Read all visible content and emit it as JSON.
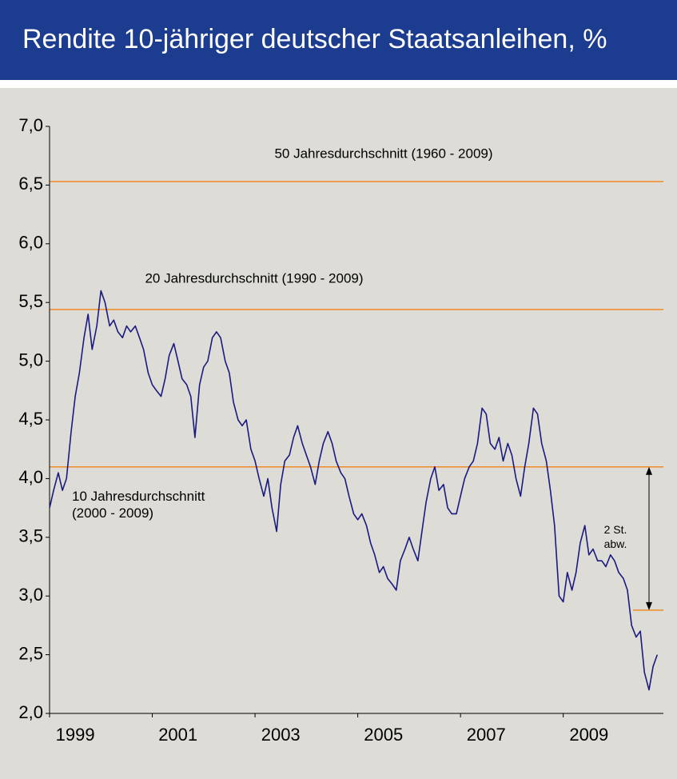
{
  "chart_data": {
    "type": "line",
    "title": "Rendite 10-jähriger deutscher Staatsanleihen, %",
    "color": "#1a1a80",
    "x": [
      1999,
      1999.08,
      1999.17,
      1999.25,
      1999.33,
      1999.42,
      1999.5,
      1999.58,
      1999.67,
      1999.75,
      1999.83,
      1999.92,
      2000,
      2000.08,
      2000.17,
      2000.25,
      2000.33,
      2000.42,
      2000.5,
      2000.58,
      2000.67,
      2000.75,
      2000.83,
      2000.92,
      2001,
      2001.08,
      2001.17,
      2001.25,
      2001.33,
      2001.42,
      2001.5,
      2001.58,
      2001.67,
      2001.75,
      2001.83,
      2001.92,
      2002,
      2002.08,
      2002.17,
      2002.25,
      2002.33,
      2002.42,
      2002.5,
      2002.58,
      2002.67,
      2002.75,
      2002.83,
      2002.92,
      2003,
      2003.08,
      2003.17,
      2003.25,
      2003.33,
      2003.42,
      2003.5,
      2003.58,
      2003.67,
      2003.75,
      2003.83,
      2003.92,
      2004,
      2004.08,
      2004.17,
      2004.25,
      2004.33,
      2004.42,
      2004.5,
      2004.58,
      2004.67,
      2004.75,
      2004.83,
      2004.92,
      2005,
      2005.08,
      2005.17,
      2005.25,
      2005.33,
      2005.42,
      2005.5,
      2005.58,
      2005.67,
      2005.75,
      2005.83,
      2005.92,
      2006,
      2006.08,
      2006.17,
      2006.25,
      2006.33,
      2006.42,
      2006.5,
      2006.58,
      2006.67,
      2006.75,
      2006.83,
      2006.92,
      2007,
      2007.08,
      2007.17,
      2007.25,
      2007.33,
      2007.42,
      2007.5,
      2007.58,
      2007.67,
      2007.75,
      2007.83,
      2007.92,
      2008,
      2008.08,
      2008.17,
      2008.25,
      2008.33,
      2008.42,
      2008.5,
      2008.58,
      2008.67,
      2008.75,
      2008.83,
      2008.92,
      2009,
      2009.08,
      2009.17,
      2009.25,
      2009.33,
      2009.42,
      2009.5,
      2009.58,
      2009.67,
      2009.75,
      2009.83,
      2009.92,
      2010,
      2010.08,
      2010.17,
      2010.25,
      2010.33,
      2010.42,
      2010.5,
      2010.58,
      2010.67,
      2010.75,
      2010.83
    ],
    "values": [
      3.75,
      3.9,
      4.05,
      3.9,
      4.0,
      4.4,
      4.7,
      4.9,
      5.2,
      5.4,
      5.1,
      5.3,
      5.6,
      5.5,
      5.3,
      5.35,
      5.25,
      5.2,
      5.3,
      5.25,
      5.3,
      5.2,
      5.1,
      4.9,
      4.8,
      4.75,
      4.7,
      4.85,
      5.05,
      5.15,
      5.0,
      4.85,
      4.8,
      4.7,
      4.35,
      4.8,
      4.95,
      5.0,
      5.2,
      5.25,
      5.2,
      5.0,
      4.9,
      4.65,
      4.5,
      4.45,
      4.5,
      4.25,
      4.15,
      4.0,
      3.85,
      4.0,
      3.75,
      3.55,
      3.95,
      4.15,
      4.2,
      4.35,
      4.45,
      4.3,
      4.2,
      4.1,
      3.95,
      4.15,
      4.3,
      4.4,
      4.3,
      4.15,
      4.05,
      4.0,
      3.85,
      3.7,
      3.65,
      3.7,
      3.6,
      3.45,
      3.35,
      3.2,
      3.25,
      3.15,
      3.1,
      3.05,
      3.3,
      3.4,
      3.5,
      3.4,
      3.3,
      3.55,
      3.8,
      4.0,
      4.1,
      3.9,
      3.95,
      3.75,
      3.7,
      3.7,
      3.85,
      4.0,
      4.1,
      4.15,
      4.3,
      4.6,
      4.55,
      4.3,
      4.25,
      4.35,
      4.15,
      4.3,
      4.2,
      4.0,
      3.85,
      4.1,
      4.3,
      4.6,
      4.55,
      4.3,
      4.15,
      3.9,
      3.6,
      3.0,
      2.95,
      3.2,
      3.05,
      3.2,
      3.45,
      3.6,
      3.35,
      3.4,
      3.3,
      3.3,
      3.25,
      3.35,
      3.3,
      3.2,
      3.15,
      3.05,
      2.75,
      2.65,
      2.7,
      2.35,
      2.2,
      2.4,
      2.5
    ],
    "xlim": [
      1999,
      2010.95
    ],
    "xticks": [
      1999,
      2001,
      2003,
      2005,
      2007,
      2009
    ],
    "ylim": [
      2,
      7
    ],
    "yticks": [
      {
        "value": 2,
        "label": "2,0"
      },
      {
        "value": 2.5,
        "label": "2,5"
      },
      {
        "value": 3,
        "label": "3,0"
      },
      {
        "value": 3.5,
        "label": "3,5"
      },
      {
        "value": 4,
        "label": "4,0"
      },
      {
        "value": 4.5,
        "label": "4,5"
      },
      {
        "value": 5,
        "label": "5,0"
      },
      {
        "value": 5.5,
        "label": "5,5"
      },
      {
        "value": 6,
        "label": "6,0"
      },
      {
        "value": 6.5,
        "label": "6,5"
      },
      {
        "value": 7,
        "label": "7,0"
      }
    ],
    "reference_color": "#f08a24",
    "reference_lines": [
      {
        "value": 6.53,
        "label": [
          "50 Jahresdurchschnitt (1960 - 2009)"
        ]
      },
      {
        "value": 5.44,
        "label": [
          "20 Jahresdurchschnitt (1990 - 2009)"
        ]
      },
      {
        "value": 4.1,
        "label": [
          "10 Jahresdurchschnitt",
          "(2000 - 2009)"
        ]
      },
      {
        "value": 2.88,
        "label": [
          "2 St.",
          "abw."
        ]
      }
    ]
  }
}
